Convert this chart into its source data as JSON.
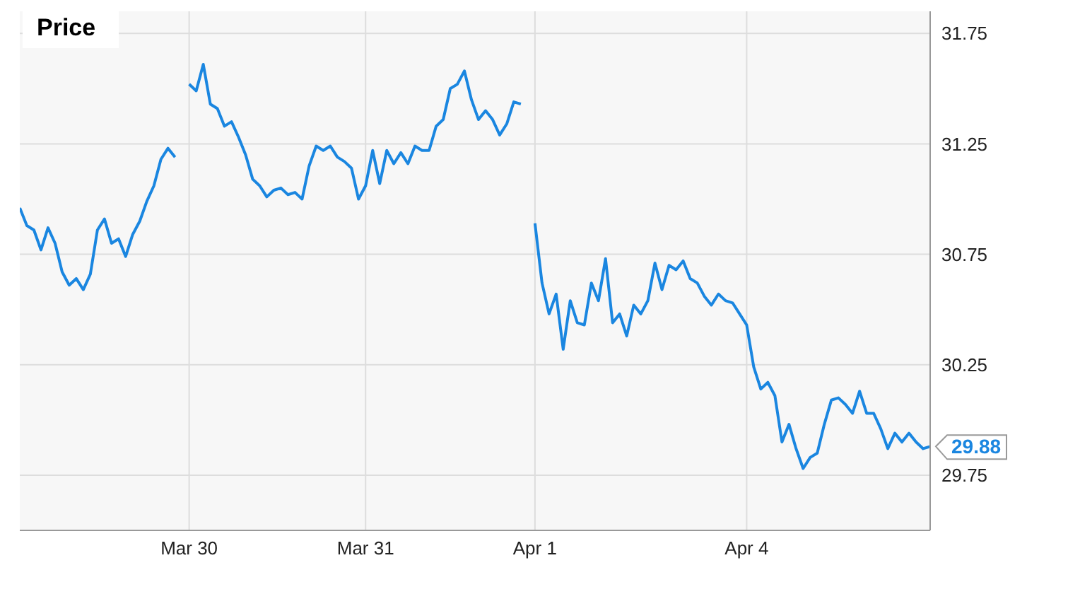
{
  "chart_data": {
    "type": "line",
    "title": "Price",
    "categories": [
      null,
      null,
      null,
      null,
      null,
      null,
      null,
      null,
      null,
      null,
      null,
      null,
      null,
      null,
      null,
      null,
      null,
      null,
      null,
      null,
      null,
      null,
      null,
      null,
      "Mar 30",
      null,
      null,
      null,
      null,
      null,
      null,
      null,
      null,
      null,
      null,
      null,
      null,
      null,
      null,
      null,
      null,
      null,
      null,
      null,
      null,
      null,
      null,
      null,
      null,
      "Mar 31",
      null,
      null,
      null,
      null,
      null,
      null,
      null,
      null,
      null,
      null,
      null,
      null,
      null,
      null,
      null,
      null,
      null,
      null,
      null,
      null,
      null,
      null,
      null,
      "Apr 1",
      null,
      null,
      null,
      null,
      null,
      null,
      null,
      null,
      null,
      null,
      null,
      null,
      null,
      null,
      null,
      null,
      null,
      null,
      null,
      null,
      null,
      null,
      null,
      null,
      null,
      null,
      null,
      null,
      null,
      "Apr 4",
      null,
      null,
      null,
      null,
      null,
      null,
      null,
      null,
      null,
      null,
      null,
      null,
      null,
      null,
      null,
      null,
      null,
      null,
      null,
      null,
      null,
      null,
      null,
      null,
      null,
      null
    ],
    "ylim": [
      29.5,
      31.85
    ],
    "yticks": [
      29.75,
      30.25,
      30.75,
      31.25,
      31.75
    ],
    "grid": true,
    "marker": "none",
    "line_style": "solid",
    "annotations": [
      "29.88"
    ],
    "series": [
      {
        "color": "#1a86e0",
        "values": [
          30.96,
          30.88,
          30.86,
          30.77,
          30.87,
          30.8,
          30.67,
          30.61,
          30.64,
          30.59,
          30.66,
          30.86,
          30.91,
          30.8,
          30.82,
          30.74,
          30.84,
          30.9,
          30.99,
          31.06,
          31.18,
          31.23,
          31.19,
          null,
          31.52,
          31.49,
          31.61,
          31.43,
          31.41,
          31.33,
          31.35,
          31.28,
          31.2,
          31.09,
          31.06,
          31.01,
          31.04,
          31.05,
          31.02,
          31.03,
          31.0,
          31.15,
          31.24,
          31.22,
          31.24,
          31.19,
          31.17,
          31.14,
          31.0,
          31.06,
          31.22,
          31.07,
          31.22,
          31.16,
          31.21,
          31.16,
          31.24,
          31.22,
          31.22,
          31.33,
          31.36,
          31.5,
          31.52,
          31.58,
          31.45,
          31.36,
          31.4,
          31.36,
          31.29,
          31.34,
          31.44,
          31.43,
          null,
          30.89,
          30.62,
          30.48,
          30.57,
          30.32,
          30.54,
          30.44,
          30.43,
          30.62,
          30.54,
          30.73,
          30.44,
          30.48,
          30.38,
          30.52,
          30.48,
          30.54,
          30.71,
          30.59,
          30.7,
          30.68,
          30.72,
          30.64,
          30.62,
          30.56,
          30.52,
          30.57,
          30.54,
          30.53,
          30.48,
          30.43,
          30.24,
          30.14,
          30.17,
          30.11,
          29.9,
          29.98,
          29.87,
          29.78,
          29.83,
          29.85,
          29.98,
          30.09,
          30.1,
          30.07,
          30.03,
          30.13,
          30.03,
          30.03,
          29.96,
          29.87,
          29.94,
          29.9,
          29.94,
          29.9,
          29.87,
          29.88
        ]
      }
    ]
  }
}
